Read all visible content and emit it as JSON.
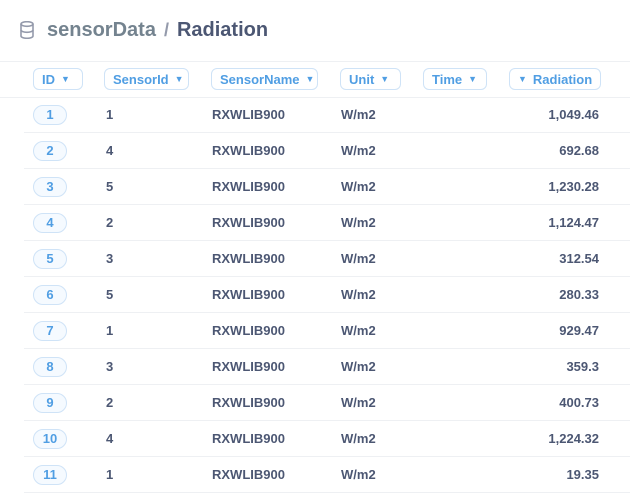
{
  "breadcrumb": {
    "database": "sensorData",
    "separator": "/",
    "table": "Radiation"
  },
  "icons": {
    "database": "database-icon",
    "sort": "chevron-down-icon"
  },
  "colors": {
    "accent": "#509ee3",
    "text": "#4c5773",
    "muted": "#74838f"
  },
  "columns": [
    {
      "label": "ID"
    },
    {
      "label": "SensorId"
    },
    {
      "label": "SensorName"
    },
    {
      "label": "Unit"
    },
    {
      "label": "Time"
    },
    {
      "label": "Radiation"
    }
  ],
  "rows": [
    {
      "id": "1",
      "sensor_id": "1",
      "sensor_name": "RXWLIB900",
      "unit": "W/m2",
      "time": "",
      "radiation": "1,049.46"
    },
    {
      "id": "2",
      "sensor_id": "4",
      "sensor_name": "RXWLIB900",
      "unit": "W/m2",
      "time": "",
      "radiation": "692.68"
    },
    {
      "id": "3",
      "sensor_id": "5",
      "sensor_name": "RXWLIB900",
      "unit": "W/m2",
      "time": "",
      "radiation": "1,230.28"
    },
    {
      "id": "4",
      "sensor_id": "2",
      "sensor_name": "RXWLIB900",
      "unit": "W/m2",
      "time": "",
      "radiation": "1,124.47"
    },
    {
      "id": "5",
      "sensor_id": "3",
      "sensor_name": "RXWLIB900",
      "unit": "W/m2",
      "time": "",
      "radiation": "312.54"
    },
    {
      "id": "6",
      "sensor_id": "5",
      "sensor_name": "RXWLIB900",
      "unit": "W/m2",
      "time": "",
      "radiation": "280.33"
    },
    {
      "id": "7",
      "sensor_id": "1",
      "sensor_name": "RXWLIB900",
      "unit": "W/m2",
      "time": "",
      "radiation": "929.47"
    },
    {
      "id": "8",
      "sensor_id": "3",
      "sensor_name": "RXWLIB900",
      "unit": "W/m2",
      "time": "",
      "radiation": "359.3"
    },
    {
      "id": "9",
      "sensor_id": "2",
      "sensor_name": "RXWLIB900",
      "unit": "W/m2",
      "time": "",
      "radiation": "400.73"
    },
    {
      "id": "10",
      "sensor_id": "4",
      "sensor_name": "RXWLIB900",
      "unit": "W/m2",
      "time": "",
      "radiation": "1,224.32"
    },
    {
      "id": "11",
      "sensor_id": "1",
      "sensor_name": "RXWLIB900",
      "unit": "W/m2",
      "time": "",
      "radiation": "19.35"
    }
  ]
}
